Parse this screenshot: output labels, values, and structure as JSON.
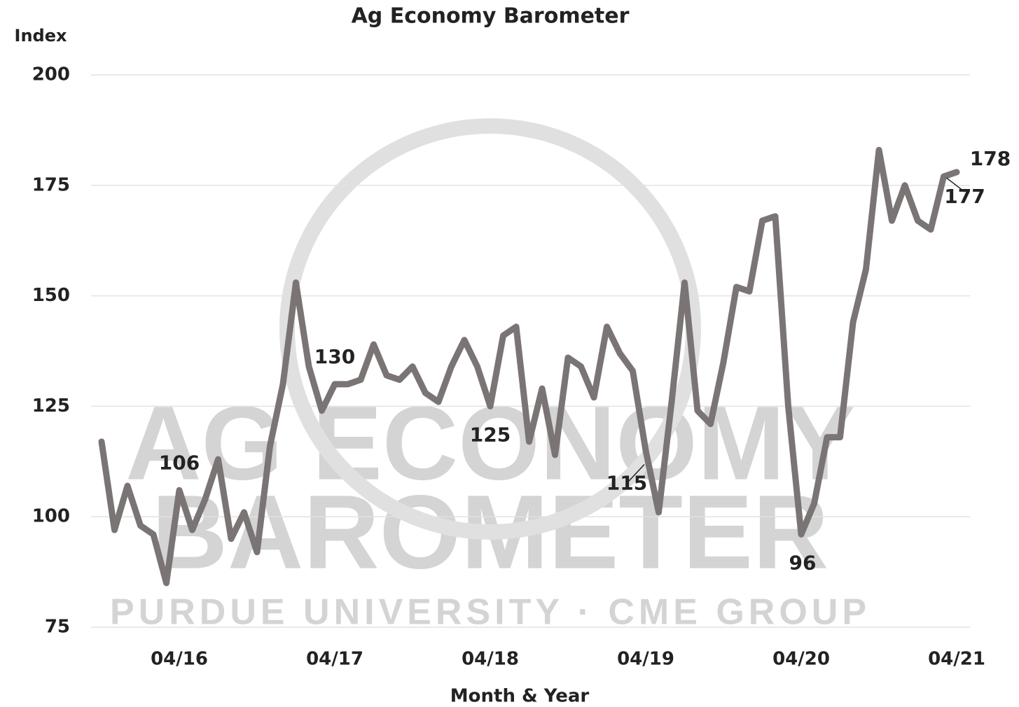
{
  "chart_data": {
    "type": "line",
    "title": "Ag Economy Barometer",
    "y_label": "Index",
    "x_label": "Month & Year",
    "watermark": [
      "AG ECONOMY",
      "BAROMETER",
      "PURDUE UNIVERSITY · CME GROUP"
    ],
    "categories": [
      null,
      null,
      null,
      null,
      null,
      null,
      "04/16",
      null,
      null,
      null,
      null,
      null,
      null,
      null,
      null,
      null,
      null,
      null,
      "04/17",
      null,
      null,
      null,
      null,
      null,
      null,
      null,
      null,
      null,
      null,
      null,
      "04/18",
      null,
      null,
      null,
      null,
      null,
      null,
      null,
      null,
      null,
      null,
      null,
      "04/19",
      null,
      null,
      null,
      null,
      null,
      null,
      null,
      null,
      null,
      null,
      null,
      "04/20",
      null,
      null,
      null,
      null,
      null,
      null,
      null,
      null,
      null,
      null,
      null,
      "04/21"
    ],
    "series": [
      {
        "name": "Ag Economy Barometer",
        "color": "#7a7574",
        "values": [
          117,
          97,
          107,
          98,
          96,
          85,
          106,
          97,
          104,
          113,
          95,
          101,
          92,
          116,
          130,
          153,
          134,
          124,
          130,
          130,
          131,
          139,
          132,
          131,
          134,
          128,
          126,
          134,
          140,
          134,
          125,
          141,
          143,
          117,
          129,
          114,
          136,
          134,
          127,
          143,
          137,
          133,
          115,
          101,
          126,
          153,
          124,
          121,
          135,
          152,
          151,
          167,
          168,
          125,
          96,
          103,
          118,
          118,
          144,
          156,
          183,
          167,
          175,
          167,
          165,
          177,
          178
        ]
      }
    ],
    "ylim": [
      75,
      200
    ],
    "yticks": [
      75,
      100,
      125,
      150,
      175,
      200
    ],
    "grid": true
  }
}
